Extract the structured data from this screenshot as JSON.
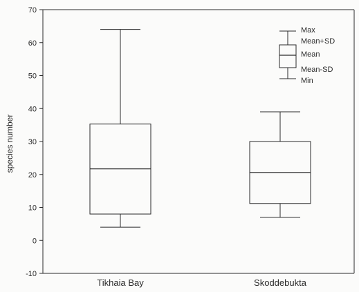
{
  "chart_data": {
    "type": "box",
    "ylabel": "species number",
    "xlabel": "",
    "ylim": [
      -10,
      70
    ],
    "yticks": [
      -10,
      0,
      10,
      20,
      30,
      40,
      50,
      60,
      70
    ],
    "ytick_labels": [
      "-10",
      "0",
      "10",
      "20",
      "30",
      "40",
      "50",
      "60",
      "70"
    ],
    "categories": [
      "Tikhaia Bay",
      "Skoddebukta"
    ],
    "boxes": [
      {
        "category": "Tikhaia Bay",
        "min": 4,
        "mean_minus_sd": 8,
        "mean": 21.7,
        "mean_plus_sd": 35.3,
        "max": 64
      },
      {
        "category": "Skoddebukta",
        "min": 7,
        "mean_minus_sd": 11.2,
        "mean": 20.6,
        "mean_plus_sd": 30,
        "max": 39
      }
    ],
    "legend": {
      "placement": "top-right",
      "items": [
        "Max",
        "Mean+SD",
        "Mean",
        "Mean-SD",
        "Min"
      ]
    },
    "grid": false
  }
}
